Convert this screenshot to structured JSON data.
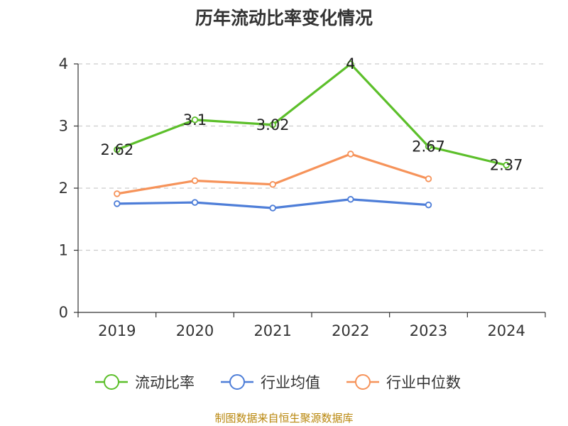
{
  "chart_data": {
    "type": "line",
    "title": "历年流动比率变化情况",
    "categories": [
      "2019",
      "2020",
      "2021",
      "2022",
      "2023",
      "2024"
    ],
    "ylim": [
      0,
      4
    ],
    "yticks": [
      0,
      1,
      2,
      3,
      4
    ],
    "xlabel": "",
    "ylabel": "",
    "grid": "horizontal dashed",
    "legend_position": "bottom",
    "series": [
      {
        "name": "流动比率",
        "color": "#5cbf2a",
        "values": [
          2.62,
          3.1,
          3.02,
          4,
          2.67,
          2.37
        ],
        "labels": [
          "2.62",
          "3.1",
          "3.02",
          "4",
          "2.67",
          "2.37"
        ],
        "show_labels": true
      },
      {
        "name": "行业均值",
        "color": "#4e7ed8",
        "values": [
          1.75,
          1.77,
          1.68,
          1.82,
          1.73,
          null
        ],
        "show_labels": false
      },
      {
        "name": "行业中位数",
        "color": "#f6935a",
        "values": [
          1.91,
          2.12,
          2.06,
          2.55,
          2.15,
          null
        ],
        "show_labels": false
      }
    ]
  },
  "source_note": "制图数据来自恒生聚源数据库"
}
